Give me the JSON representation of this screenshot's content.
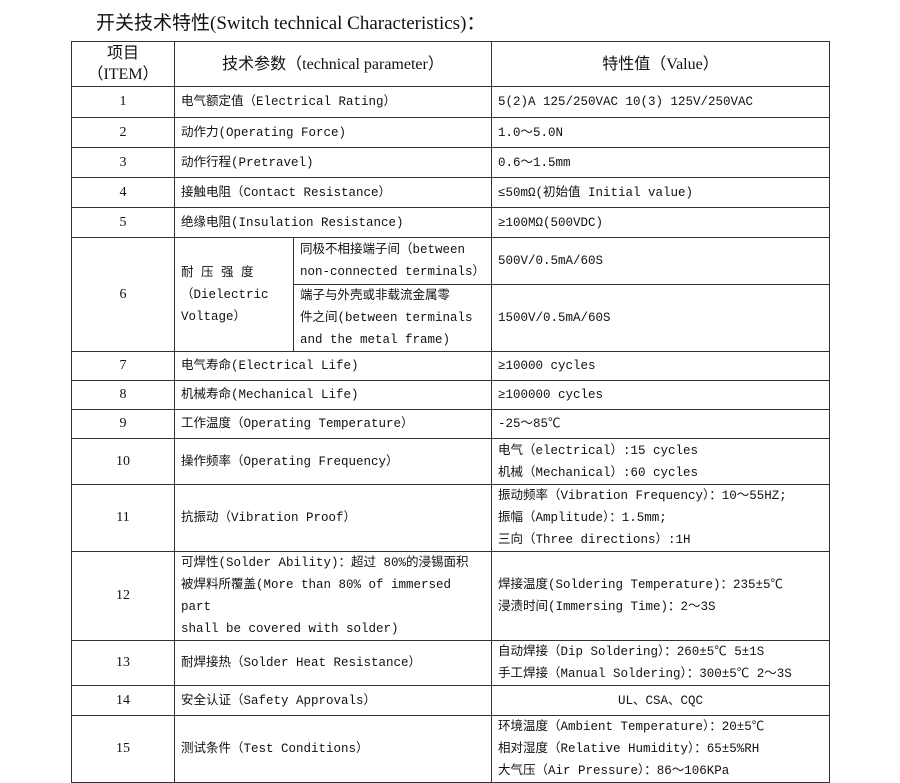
{
  "title": "开关技术特性(Switch technical Characteristics)：",
  "header": {
    "item": [
      "项目",
      "（ITEM）"
    ],
    "parameter": "技术参数（technical parameter）",
    "value": "特性值（Value）"
  },
  "rows": [
    {
      "no": "1",
      "param": [
        "电气额定值（Electrical Rating）"
      ],
      "value": [
        "5(2)A 125/250VAC 10(3) 125V/250VAC"
      ],
      "h": 31
    },
    {
      "no": "2",
      "param": [
        "动作力(Operating Force)"
      ],
      "value": [
        "1.0～5.0N"
      ],
      "h": 30
    },
    {
      "no": "3",
      "param": [
        "动作行程(Pretravel)"
      ],
      "value": [
        "0.6～1.5mm"
      ],
      "h": 30
    },
    {
      "no": "4",
      "param": [
        "接触电阻（Contact  Resistance）"
      ],
      "value": [
        "≤50mΩ(初始值 Initial value)"
      ],
      "h": 30
    },
    {
      "no": "5",
      "param": [
        "绝缘电阻(Insulation Resistance)"
      ],
      "value": [
        "≥100MΩ(500VDC)"
      ],
      "h": 30
    },
    {
      "no": "6",
      "param": [
        "耐 压 强 度",
        "（Dielectric",
        "Voltage）"
      ],
      "sub": [
        {
          "cond": [
            "同极不相接端子间（between",
            "non-connected terminals）"
          ],
          "value": [
            "500V/0.5mA/60S"
          ],
          "h": 47
        },
        {
          "cond": [
            "端子与外壳或非载流金属零",
            "件之间(between terminals",
            "and the metal frame)"
          ],
          "value": [
            "1500V/0.5mA/60S"
          ],
          "h": 63
        }
      ]
    },
    {
      "no": "7",
      "param": [
        "电气寿命(Electrical Life)"
      ],
      "value": [
        "≥10000 cycles"
      ],
      "h": 29
    },
    {
      "no": "8",
      "param": [
        "机械寿命(Mechanical Life)"
      ],
      "value": [
        "≥100000 cycles"
      ],
      "h": 29
    },
    {
      "no": "9",
      "param": [
        "工作温度（Operating Temperature）"
      ],
      "value": [
        "-25～85℃"
      ],
      "h": 29
    },
    {
      "no": "10",
      "param": [
        "操作频率（Operating Frequency）"
      ],
      "value": [
        "电气（electrical）:15 cycles",
        "机械（Mechanical）:60 cycles"
      ],
      "h": 46
    },
    {
      "no": "11",
      "param": [
        "抗振动（Vibration Proof）"
      ],
      "value": [
        " 振动频率（Vibration Frequency）：10～55HZ;",
        "振幅（Amplitude）：1.5mm;",
        "三向（Three directions）:1H"
      ],
      "h": 66
    },
    {
      "no": "12",
      "param": [
        "可焊性(Solder Ability)：超过 80%的浸锡面积",
        "被焊料所覆盖(More than 80% of immersed part",
        "shall be covered with solder)"
      ],
      "value": [
        "焊接温度(Soldering Temperature)：235±5℃",
        "浸渍时间(Immersing Time)：2～3S"
      ],
      "h": 64
    },
    {
      "no": "13",
      "param": [
        "耐焊接热（Solder Heat Resistance）"
      ],
      "value": [
        "自动焊接（Dip Soldering）：260±5℃ 5±1S",
        "手工焊接（Manual Soldering）：300±5℃ 2～3S"
      ],
      "h": 44
    },
    {
      "no": "14",
      "param": [
        "安全认证（Safety Approvals）"
      ],
      "value": [
        "UL、CSA、CQC"
      ],
      "h": 30,
      "center": true
    },
    {
      "no": "15",
      "param": [
        "测试条件（Test Conditions）"
      ],
      "value": [
        "环境温度（Ambient Temperature）：20±5℃",
        "相对湿度（Relative Humidity）：65±5%RH",
        "大气压（Air Pressure）：86～106KPa"
      ],
      "h": 66
    }
  ]
}
